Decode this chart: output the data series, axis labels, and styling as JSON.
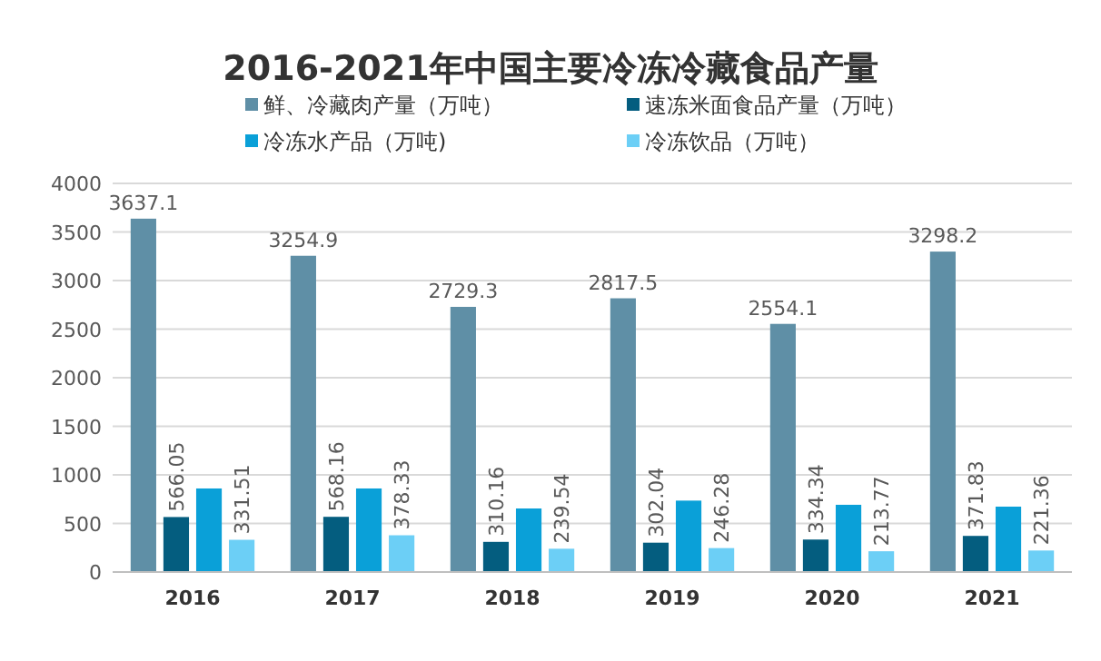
{
  "chart_data": {
    "type": "bar",
    "title": "2016-2021年中国主要冷冻冷藏食品产量",
    "categories": [
      "2016",
      "2017",
      "2018",
      "2019",
      "2020",
      "2021"
    ],
    "series": [
      {
        "name": "鲜、冷藏肉产量（万吨）",
        "color": "#5f8fa6",
        "values": [
          3637.1,
          3254.9,
          2729.3,
          2817.5,
          2554.1,
          3298.2
        ],
        "value_labels": [
          "3637.1",
          "3254.9",
          "2729.3",
          "2817.5",
          "2554.1",
          "3298.2"
        ]
      },
      {
        "name": "速冻米面食品产量（万吨）",
        "color": "#045d7f",
        "values": [
          566.05,
          568.16,
          310.16,
          302.04,
          334.34,
          371.83
        ],
        "value_labels": [
          "566.05",
          "568.16",
          "310.16",
          "302.04",
          "334.34",
          "371.83"
        ]
      },
      {
        "name": "冷冻水产品（万吨)",
        "color": "#0aa0d8",
        "values": [
          860,
          860,
          654,
          735,
          692,
          673
        ]
      },
      {
        "name": "冷冻饮品（万吨）",
        "color": "#6ccff6",
        "values": [
          331.51,
          378.33,
          239.54,
          246.28,
          213.77,
          221.36
        ],
        "value_labels": [
          "331.51",
          "378.33",
          "239.54",
          "246.28",
          "213.77",
          "221.36"
        ]
      }
    ],
    "ylim": [
      0,
      4000
    ],
    "yticks": [
      0,
      500,
      1000,
      1500,
      2000,
      2500,
      3000,
      3500,
      4000
    ],
    "grid": "y",
    "legend": "top"
  }
}
